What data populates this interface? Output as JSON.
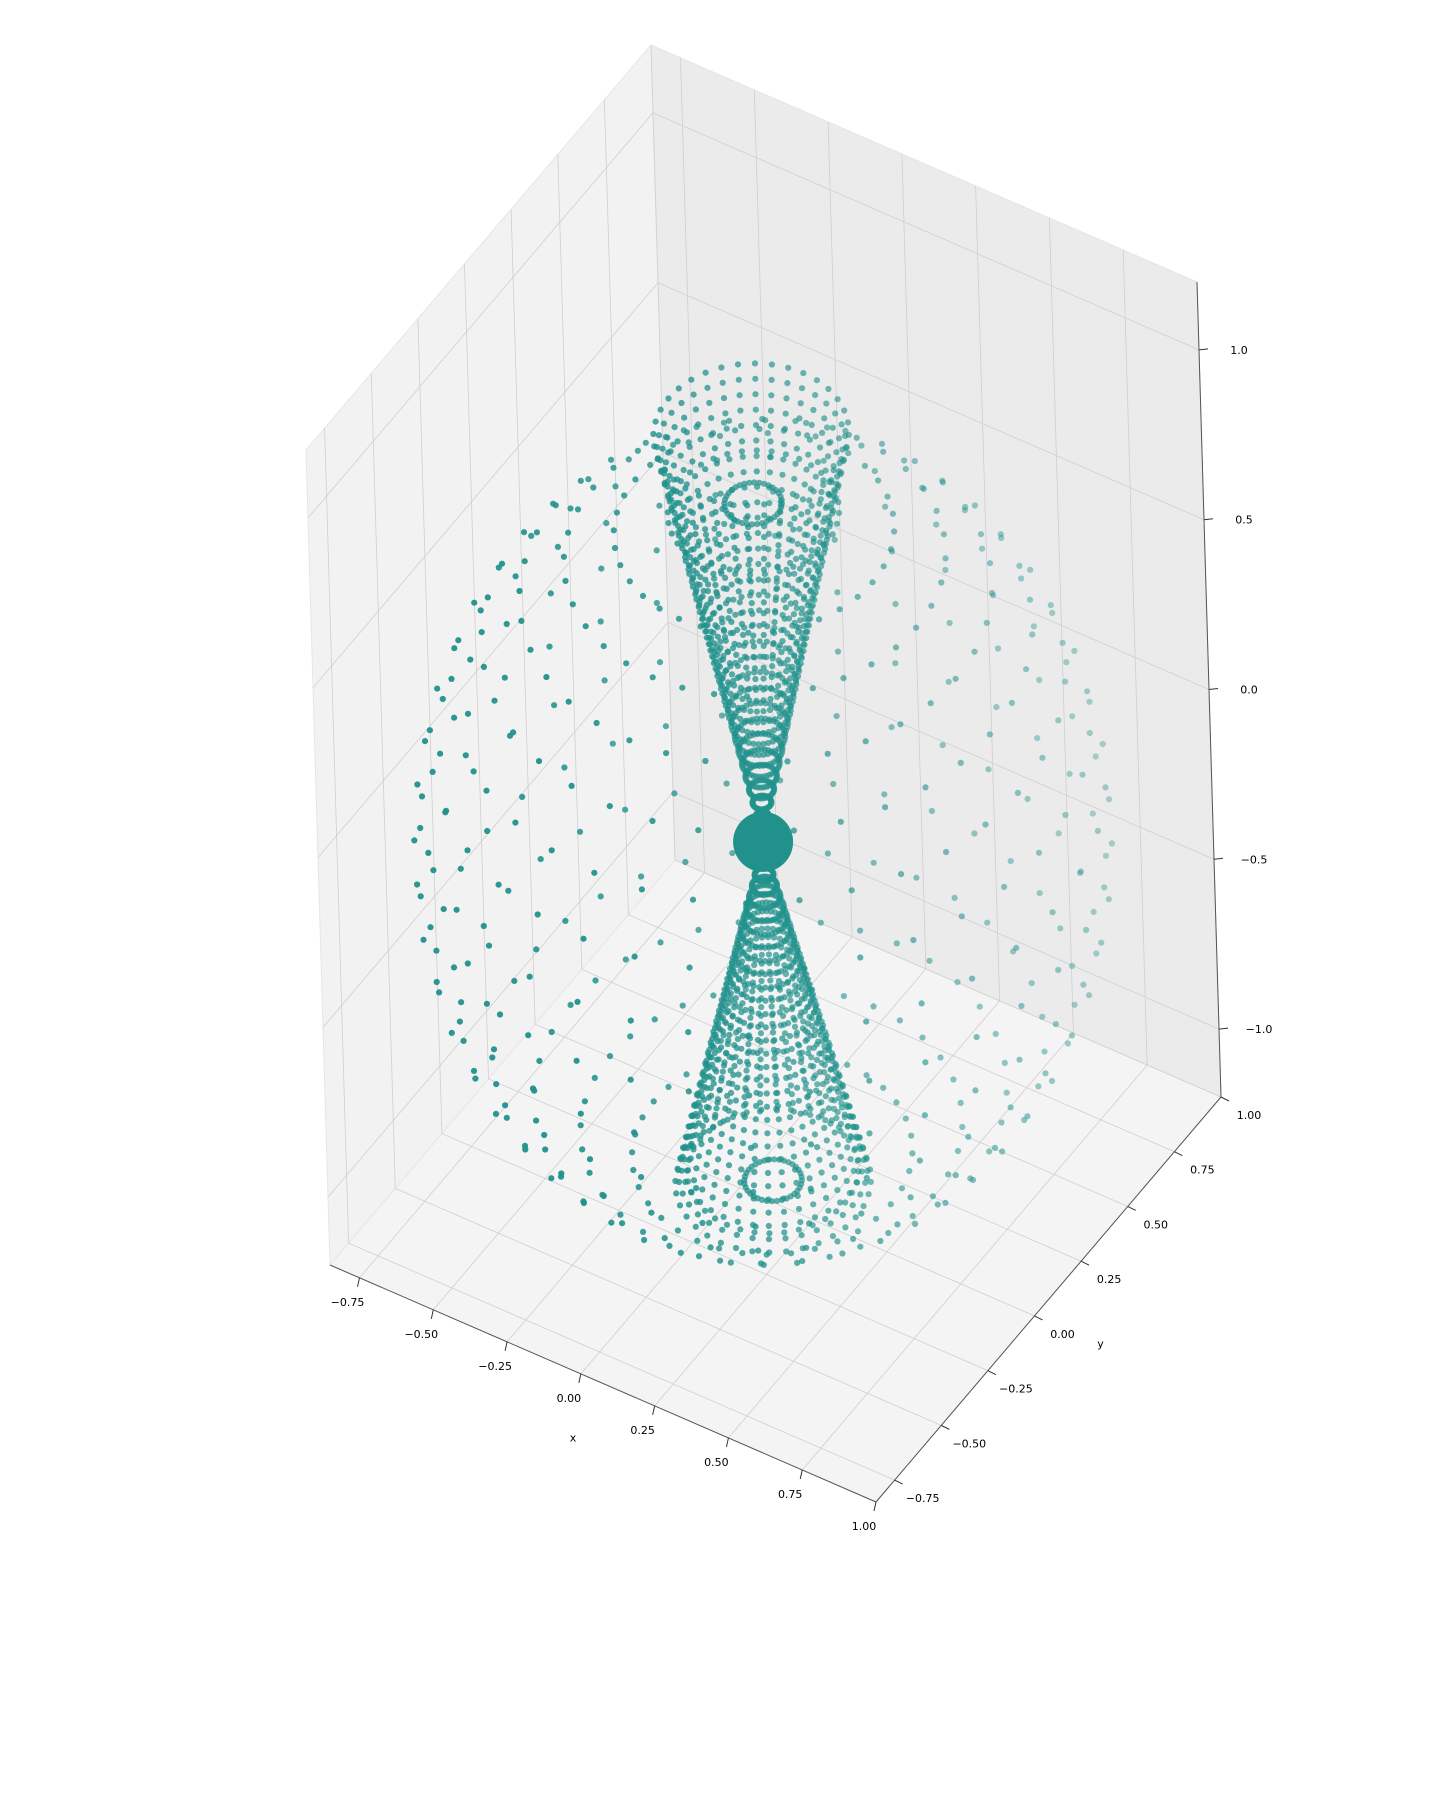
{
  "chart_data": {
    "type": "scatter",
    "projection": "3d",
    "xlabel": "x",
    "ylabel": "y",
    "zlabel": "",
    "xlim": [
      -0.85,
      1.0
    ],
    "ylim": [
      -0.85,
      1.0
    ],
    "zlim": [
      -1.2,
      1.2
    ],
    "x_ticks": [
      -0.75,
      -0.5,
      -0.25,
      0.0,
      0.25,
      0.5,
      0.75,
      1.0
    ],
    "x_tick_labels": [
      "−0.75",
      "−0.50",
      "−0.25",
      "0.00",
      "0.25",
      "0.50",
      "0.75",
      "1.00"
    ],
    "y_ticks": [
      -0.75,
      -0.5,
      -0.25,
      0.0,
      0.25,
      0.5,
      0.75,
      1.0
    ],
    "y_tick_labels": [
      "−0.75",
      "−0.50",
      "−0.25",
      "0.00",
      "0.25",
      "0.50",
      "0.75",
      "1.00"
    ],
    "z_ticks": [
      -1.0,
      -0.5,
      0.0,
      0.5,
      1.0
    ],
    "z_tick_labels": [
      "−1.0",
      "−0.5",
      "0.0",
      "0.5",
      "1.0"
    ],
    "grid": true,
    "marker_color": "#21918c",
    "series": [
      {
        "shape": "polar-grid sphere",
        "radius": 1.0,
        "center": [
          0.07,
          0.07,
          -0.2
        ],
        "longitudes": 36,
        "latitudes": 19
      },
      {
        "shape": "double cone",
        "apex_z": -0.2,
        "top_z": 1.0,
        "bottom_z": -1.2,
        "rim_radius": 0.28,
        "rings": 31,
        "points_per_ring": 36
      },
      {
        "shape": "central ball",
        "center": [
          0.07,
          0.07,
          -0.2
        ],
        "radius": 0.06
      }
    ]
  }
}
